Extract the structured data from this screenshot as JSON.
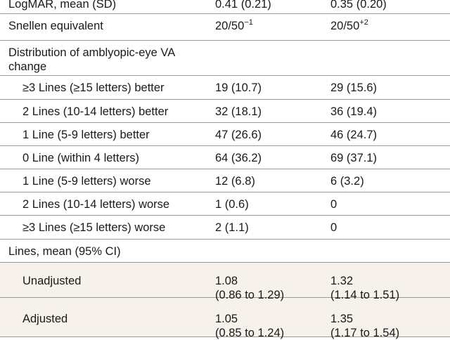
{
  "rows": [
    {
      "label": "LogMAR, mean (SD)",
      "g1": "0.41 (0.21)",
      "g2": "0.35 (0.20)",
      "indent": false
    },
    {
      "label": "Snellen equivalent",
      "g1": "20/50",
      "g1_sup": "−1",
      "g2": "20/50",
      "g2_sup": "+2",
      "indent": false
    },
    {
      "label_lines": [
        "Distribution of amblyopic-eye VA",
        "change"
      ],
      "g1": "",
      "g2": "",
      "indent": false
    },
    {
      "label": "≥3 Lines (≥15 letters) better",
      "g1": "19 (10.7)",
      "g2": "29 (15.6)",
      "indent": true
    },
    {
      "label": "2 Lines (10-14 letters) better",
      "g1": "32 (18.1)",
      "g2": "36 (19.4)",
      "indent": true
    },
    {
      "label": "1 Line (5-9 letters) better",
      "g1": "47 (26.6)",
      "g2": "46 (24.7)",
      "indent": true
    },
    {
      "label": "0 Line (within 4 letters)",
      "g1": "64 (36.2)",
      "g2": "69 (37.1)",
      "indent": true
    },
    {
      "label": "1 Line (5-9 letters) worse",
      "g1": "12 (6.8)",
      "g2": "6 (3.2)",
      "indent": true
    },
    {
      "label": "2 Lines (10-14 letters) worse",
      "g1": "1 (0.6)",
      "g2": "0",
      "indent": true
    },
    {
      "label": "≥3 Lines (≥15 letters) worse",
      "g1": "2 (1.1)",
      "g2": "0",
      "indent": true
    },
    {
      "label": "Lines, mean (95% CI)",
      "g1": "",
      "g2": "",
      "indent": false
    },
    {
      "label": "Unadjusted",
      "g1_lines": [
        "1.08",
        "(0.86 to 1.29)"
      ],
      "g2_lines": [
        "1.32",
        "(1.14 to 1.51)"
      ],
      "indent": true
    },
    {
      "label": "Adjusted",
      "g1_lines": [
        "1.05",
        "(0.85 to 1.24)"
      ],
      "g2_lines": [
        "1.35",
        "(1.17 to 1.54)"
      ],
      "indent": true
    }
  ]
}
